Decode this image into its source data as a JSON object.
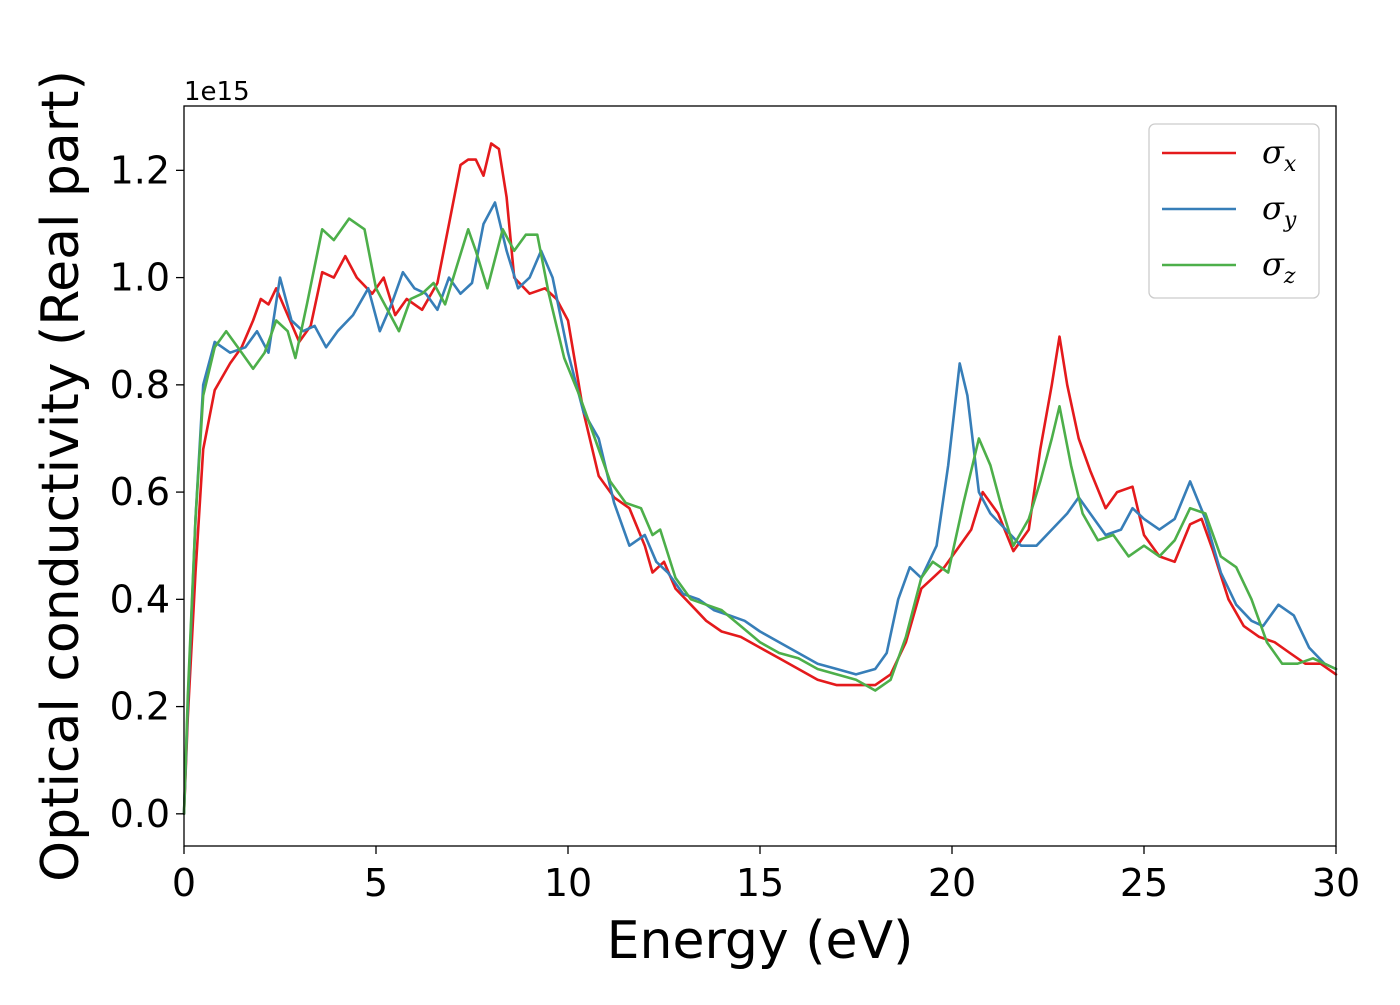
{
  "chart_data": {
    "type": "line",
    "xlabel": "Energy (eV)",
    "ylabel": "Optical conductivity (Real part)",
    "y_offset_label": "1e15",
    "xlim": [
      0,
      30
    ],
    "ylim": [
      -0.06,
      1.32
    ],
    "x_ticks": [
      0,
      5,
      10,
      15,
      20,
      25,
      30
    ],
    "x_tick_labels": [
      "0",
      "5",
      "10",
      "15",
      "20",
      "25",
      "30"
    ],
    "y_ticks": [
      0.0,
      0.2,
      0.4,
      0.6,
      0.8,
      1.0,
      1.2
    ],
    "y_tick_labels": [
      "0.0",
      "0.2",
      "0.4",
      "0.6",
      "0.8",
      "1.0",
      "1.2"
    ],
    "grid": false,
    "legend_position": "top-right",
    "series": [
      {
        "name": "σx",
        "symbol": "σ",
        "subscript": "x",
        "color": "#e41a1c",
        "points": [
          [
            0.0,
            0.0
          ],
          [
            0.1,
            0.18
          ],
          [
            0.3,
            0.45
          ],
          [
            0.5,
            0.68
          ],
          [
            0.8,
            0.79
          ],
          [
            1.2,
            0.84
          ],
          [
            1.5,
            0.87
          ],
          [
            1.8,
            0.92
          ],
          [
            2.0,
            0.96
          ],
          [
            2.2,
            0.95
          ],
          [
            2.4,
            0.98
          ],
          [
            2.7,
            0.93
          ],
          [
            3.0,
            0.88
          ],
          [
            3.3,
            0.91
          ],
          [
            3.6,
            1.01
          ],
          [
            3.9,
            1.0
          ],
          [
            4.2,
            1.04
          ],
          [
            4.5,
            1.0
          ],
          [
            4.9,
            0.97
          ],
          [
            5.2,
            1.0
          ],
          [
            5.5,
            0.93
          ],
          [
            5.8,
            0.96
          ],
          [
            6.2,
            0.94
          ],
          [
            6.6,
            0.99
          ],
          [
            6.9,
            1.1
          ],
          [
            7.2,
            1.21
          ],
          [
            7.4,
            1.22
          ],
          [
            7.6,
            1.22
          ],
          [
            7.8,
            1.19
          ],
          [
            8.0,
            1.25
          ],
          [
            8.2,
            1.24
          ],
          [
            8.4,
            1.15
          ],
          [
            8.6,
            1.0
          ],
          [
            9.0,
            0.97
          ],
          [
            9.4,
            0.98
          ],
          [
            9.7,
            0.96
          ],
          [
            10.0,
            0.92
          ],
          [
            10.4,
            0.75
          ],
          [
            10.8,
            0.63
          ],
          [
            11.2,
            0.59
          ],
          [
            11.6,
            0.57
          ],
          [
            12.0,
            0.5
          ],
          [
            12.2,
            0.45
          ],
          [
            12.5,
            0.47
          ],
          [
            12.8,
            0.42
          ],
          [
            13.2,
            0.39
          ],
          [
            13.6,
            0.36
          ],
          [
            14.0,
            0.34
          ],
          [
            14.5,
            0.33
          ],
          [
            15.0,
            0.31
          ],
          [
            15.5,
            0.29
          ],
          [
            16.0,
            0.27
          ],
          [
            16.5,
            0.25
          ],
          [
            17.0,
            0.24
          ],
          [
            17.5,
            0.24
          ],
          [
            18.0,
            0.24
          ],
          [
            18.4,
            0.26
          ],
          [
            18.8,
            0.32
          ],
          [
            19.2,
            0.42
          ],
          [
            19.5,
            0.44
          ],
          [
            19.8,
            0.46
          ],
          [
            20.2,
            0.5
          ],
          [
            20.5,
            0.53
          ],
          [
            20.8,
            0.6
          ],
          [
            21.2,
            0.56
          ],
          [
            21.6,
            0.49
          ],
          [
            22.0,
            0.53
          ],
          [
            22.3,
            0.68
          ],
          [
            22.6,
            0.8
          ],
          [
            22.8,
            0.89
          ],
          [
            23.0,
            0.8
          ],
          [
            23.3,
            0.7
          ],
          [
            23.6,
            0.64
          ],
          [
            24.0,
            0.57
          ],
          [
            24.3,
            0.6
          ],
          [
            24.7,
            0.61
          ],
          [
            25.0,
            0.52
          ],
          [
            25.4,
            0.48
          ],
          [
            25.8,
            0.47
          ],
          [
            26.2,
            0.54
          ],
          [
            26.5,
            0.55
          ],
          [
            26.8,
            0.49
          ],
          [
            27.2,
            0.4
          ],
          [
            27.6,
            0.35
          ],
          [
            28.0,
            0.33
          ],
          [
            28.4,
            0.32
          ],
          [
            28.8,
            0.3
          ],
          [
            29.2,
            0.28
          ],
          [
            29.6,
            0.28
          ],
          [
            30.0,
            0.26
          ]
        ]
      },
      {
        "name": "σy",
        "symbol": "σ",
        "subscript": "y",
        "color": "#377eb8",
        "points": [
          [
            0.0,
            0.0
          ],
          [
            0.1,
            0.2
          ],
          [
            0.3,
            0.55
          ],
          [
            0.5,
            0.8
          ],
          [
            0.8,
            0.88
          ],
          [
            1.2,
            0.86
          ],
          [
            1.6,
            0.87
          ],
          [
            1.9,
            0.9
          ],
          [
            2.2,
            0.86
          ],
          [
            2.5,
            1.0
          ],
          [
            2.8,
            0.92
          ],
          [
            3.1,
            0.9
          ],
          [
            3.4,
            0.91
          ],
          [
            3.7,
            0.87
          ],
          [
            4.0,
            0.9
          ],
          [
            4.4,
            0.93
          ],
          [
            4.8,
            0.98
          ],
          [
            5.1,
            0.9
          ],
          [
            5.4,
            0.95
          ],
          [
            5.7,
            1.01
          ],
          [
            6.0,
            0.98
          ],
          [
            6.3,
            0.97
          ],
          [
            6.6,
            0.94
          ],
          [
            6.9,
            1.0
          ],
          [
            7.2,
            0.97
          ],
          [
            7.5,
            0.99
          ],
          [
            7.8,
            1.1
          ],
          [
            8.1,
            1.14
          ],
          [
            8.4,
            1.05
          ],
          [
            8.7,
            0.98
          ],
          [
            9.0,
            1.0
          ],
          [
            9.3,
            1.05
          ],
          [
            9.6,
            1.0
          ],
          [
            10.0,
            0.86
          ],
          [
            10.4,
            0.75
          ],
          [
            10.8,
            0.7
          ],
          [
            11.2,
            0.58
          ],
          [
            11.6,
            0.5
          ],
          [
            12.0,
            0.52
          ],
          [
            12.3,
            0.47
          ],
          [
            12.6,
            0.45
          ],
          [
            13.0,
            0.41
          ],
          [
            13.4,
            0.4
          ],
          [
            13.8,
            0.38
          ],
          [
            14.2,
            0.37
          ],
          [
            14.6,
            0.36
          ],
          [
            15.0,
            0.34
          ],
          [
            15.5,
            0.32
          ],
          [
            16.0,
            0.3
          ],
          [
            16.5,
            0.28
          ],
          [
            17.0,
            0.27
          ],
          [
            17.5,
            0.26
          ],
          [
            18.0,
            0.27
          ],
          [
            18.3,
            0.3
          ],
          [
            18.6,
            0.4
          ],
          [
            18.9,
            0.46
          ],
          [
            19.2,
            0.44
          ],
          [
            19.6,
            0.5
          ],
          [
            19.9,
            0.65
          ],
          [
            20.2,
            0.84
          ],
          [
            20.4,
            0.78
          ],
          [
            20.7,
            0.6
          ],
          [
            21.0,
            0.56
          ],
          [
            21.4,
            0.53
          ],
          [
            21.8,
            0.5
          ],
          [
            22.2,
            0.5
          ],
          [
            22.6,
            0.53
          ],
          [
            23.0,
            0.56
          ],
          [
            23.3,
            0.59
          ],
          [
            23.6,
            0.56
          ],
          [
            24.0,
            0.52
          ],
          [
            24.4,
            0.53
          ],
          [
            24.7,
            0.57
          ],
          [
            25.0,
            0.55
          ],
          [
            25.4,
            0.53
          ],
          [
            25.8,
            0.55
          ],
          [
            26.2,
            0.62
          ],
          [
            26.6,
            0.55
          ],
          [
            27.0,
            0.45
          ],
          [
            27.4,
            0.39
          ],
          [
            27.8,
            0.36
          ],
          [
            28.1,
            0.35
          ],
          [
            28.5,
            0.39
          ],
          [
            28.9,
            0.37
          ],
          [
            29.3,
            0.31
          ],
          [
            29.7,
            0.28
          ],
          [
            30.0,
            0.27
          ]
        ]
      },
      {
        "name": "σz",
        "symbol": "σ",
        "subscript": "z",
        "color": "#4daf4a",
        "points": [
          [
            0.0,
            0.0
          ],
          [
            0.1,
            0.22
          ],
          [
            0.3,
            0.55
          ],
          [
            0.5,
            0.78
          ],
          [
            0.8,
            0.87
          ],
          [
            1.1,
            0.9
          ],
          [
            1.4,
            0.87
          ],
          [
            1.8,
            0.83
          ],
          [
            2.1,
            0.86
          ],
          [
            2.4,
            0.92
          ],
          [
            2.7,
            0.9
          ],
          [
            2.9,
            0.85
          ],
          [
            3.2,
            0.95
          ],
          [
            3.6,
            1.09
          ],
          [
            3.9,
            1.07
          ],
          [
            4.3,
            1.11
          ],
          [
            4.7,
            1.09
          ],
          [
            5.0,
            0.98
          ],
          [
            5.3,
            0.94
          ],
          [
            5.6,
            0.9
          ],
          [
            5.9,
            0.96
          ],
          [
            6.2,
            0.97
          ],
          [
            6.5,
            0.99
          ],
          [
            6.8,
            0.95
          ],
          [
            7.1,
            1.02
          ],
          [
            7.4,
            1.09
          ],
          [
            7.6,
            1.05
          ],
          [
            7.9,
            0.98
          ],
          [
            8.3,
            1.09
          ],
          [
            8.6,
            1.05
          ],
          [
            8.9,
            1.08
          ],
          [
            9.2,
            1.08
          ],
          [
            9.5,
            0.97
          ],
          [
            9.9,
            0.85
          ],
          [
            10.3,
            0.78
          ],
          [
            10.7,
            0.7
          ],
          [
            11.1,
            0.62
          ],
          [
            11.5,
            0.58
          ],
          [
            11.9,
            0.57
          ],
          [
            12.2,
            0.52
          ],
          [
            12.4,
            0.53
          ],
          [
            12.8,
            0.44
          ],
          [
            13.2,
            0.4
          ],
          [
            13.6,
            0.39
          ],
          [
            14.0,
            0.38
          ],
          [
            14.5,
            0.35
          ],
          [
            15.0,
            0.32
          ],
          [
            15.5,
            0.3
          ],
          [
            16.0,
            0.29
          ],
          [
            16.5,
            0.27
          ],
          [
            17.0,
            0.26
          ],
          [
            17.5,
            0.25
          ],
          [
            18.0,
            0.23
          ],
          [
            18.4,
            0.25
          ],
          [
            18.8,
            0.33
          ],
          [
            19.2,
            0.44
          ],
          [
            19.5,
            0.47
          ],
          [
            19.9,
            0.45
          ],
          [
            20.3,
            0.58
          ],
          [
            20.7,
            0.7
          ],
          [
            21.0,
            0.65
          ],
          [
            21.3,
            0.57
          ],
          [
            21.6,
            0.5
          ],
          [
            22.0,
            0.55
          ],
          [
            22.3,
            0.62
          ],
          [
            22.6,
            0.7
          ],
          [
            22.8,
            0.76
          ],
          [
            23.1,
            0.65
          ],
          [
            23.4,
            0.56
          ],
          [
            23.8,
            0.51
          ],
          [
            24.2,
            0.52
          ],
          [
            24.6,
            0.48
          ],
          [
            25.0,
            0.5
          ],
          [
            25.4,
            0.48
          ],
          [
            25.8,
            0.51
          ],
          [
            26.2,
            0.57
          ],
          [
            26.6,
            0.56
          ],
          [
            27.0,
            0.48
          ],
          [
            27.4,
            0.46
          ],
          [
            27.8,
            0.4
          ],
          [
            28.2,
            0.32
          ],
          [
            28.6,
            0.28
          ],
          [
            29.0,
            0.28
          ],
          [
            29.4,
            0.29
          ],
          [
            29.7,
            0.28
          ],
          [
            30.0,
            0.27
          ]
        ]
      }
    ]
  }
}
